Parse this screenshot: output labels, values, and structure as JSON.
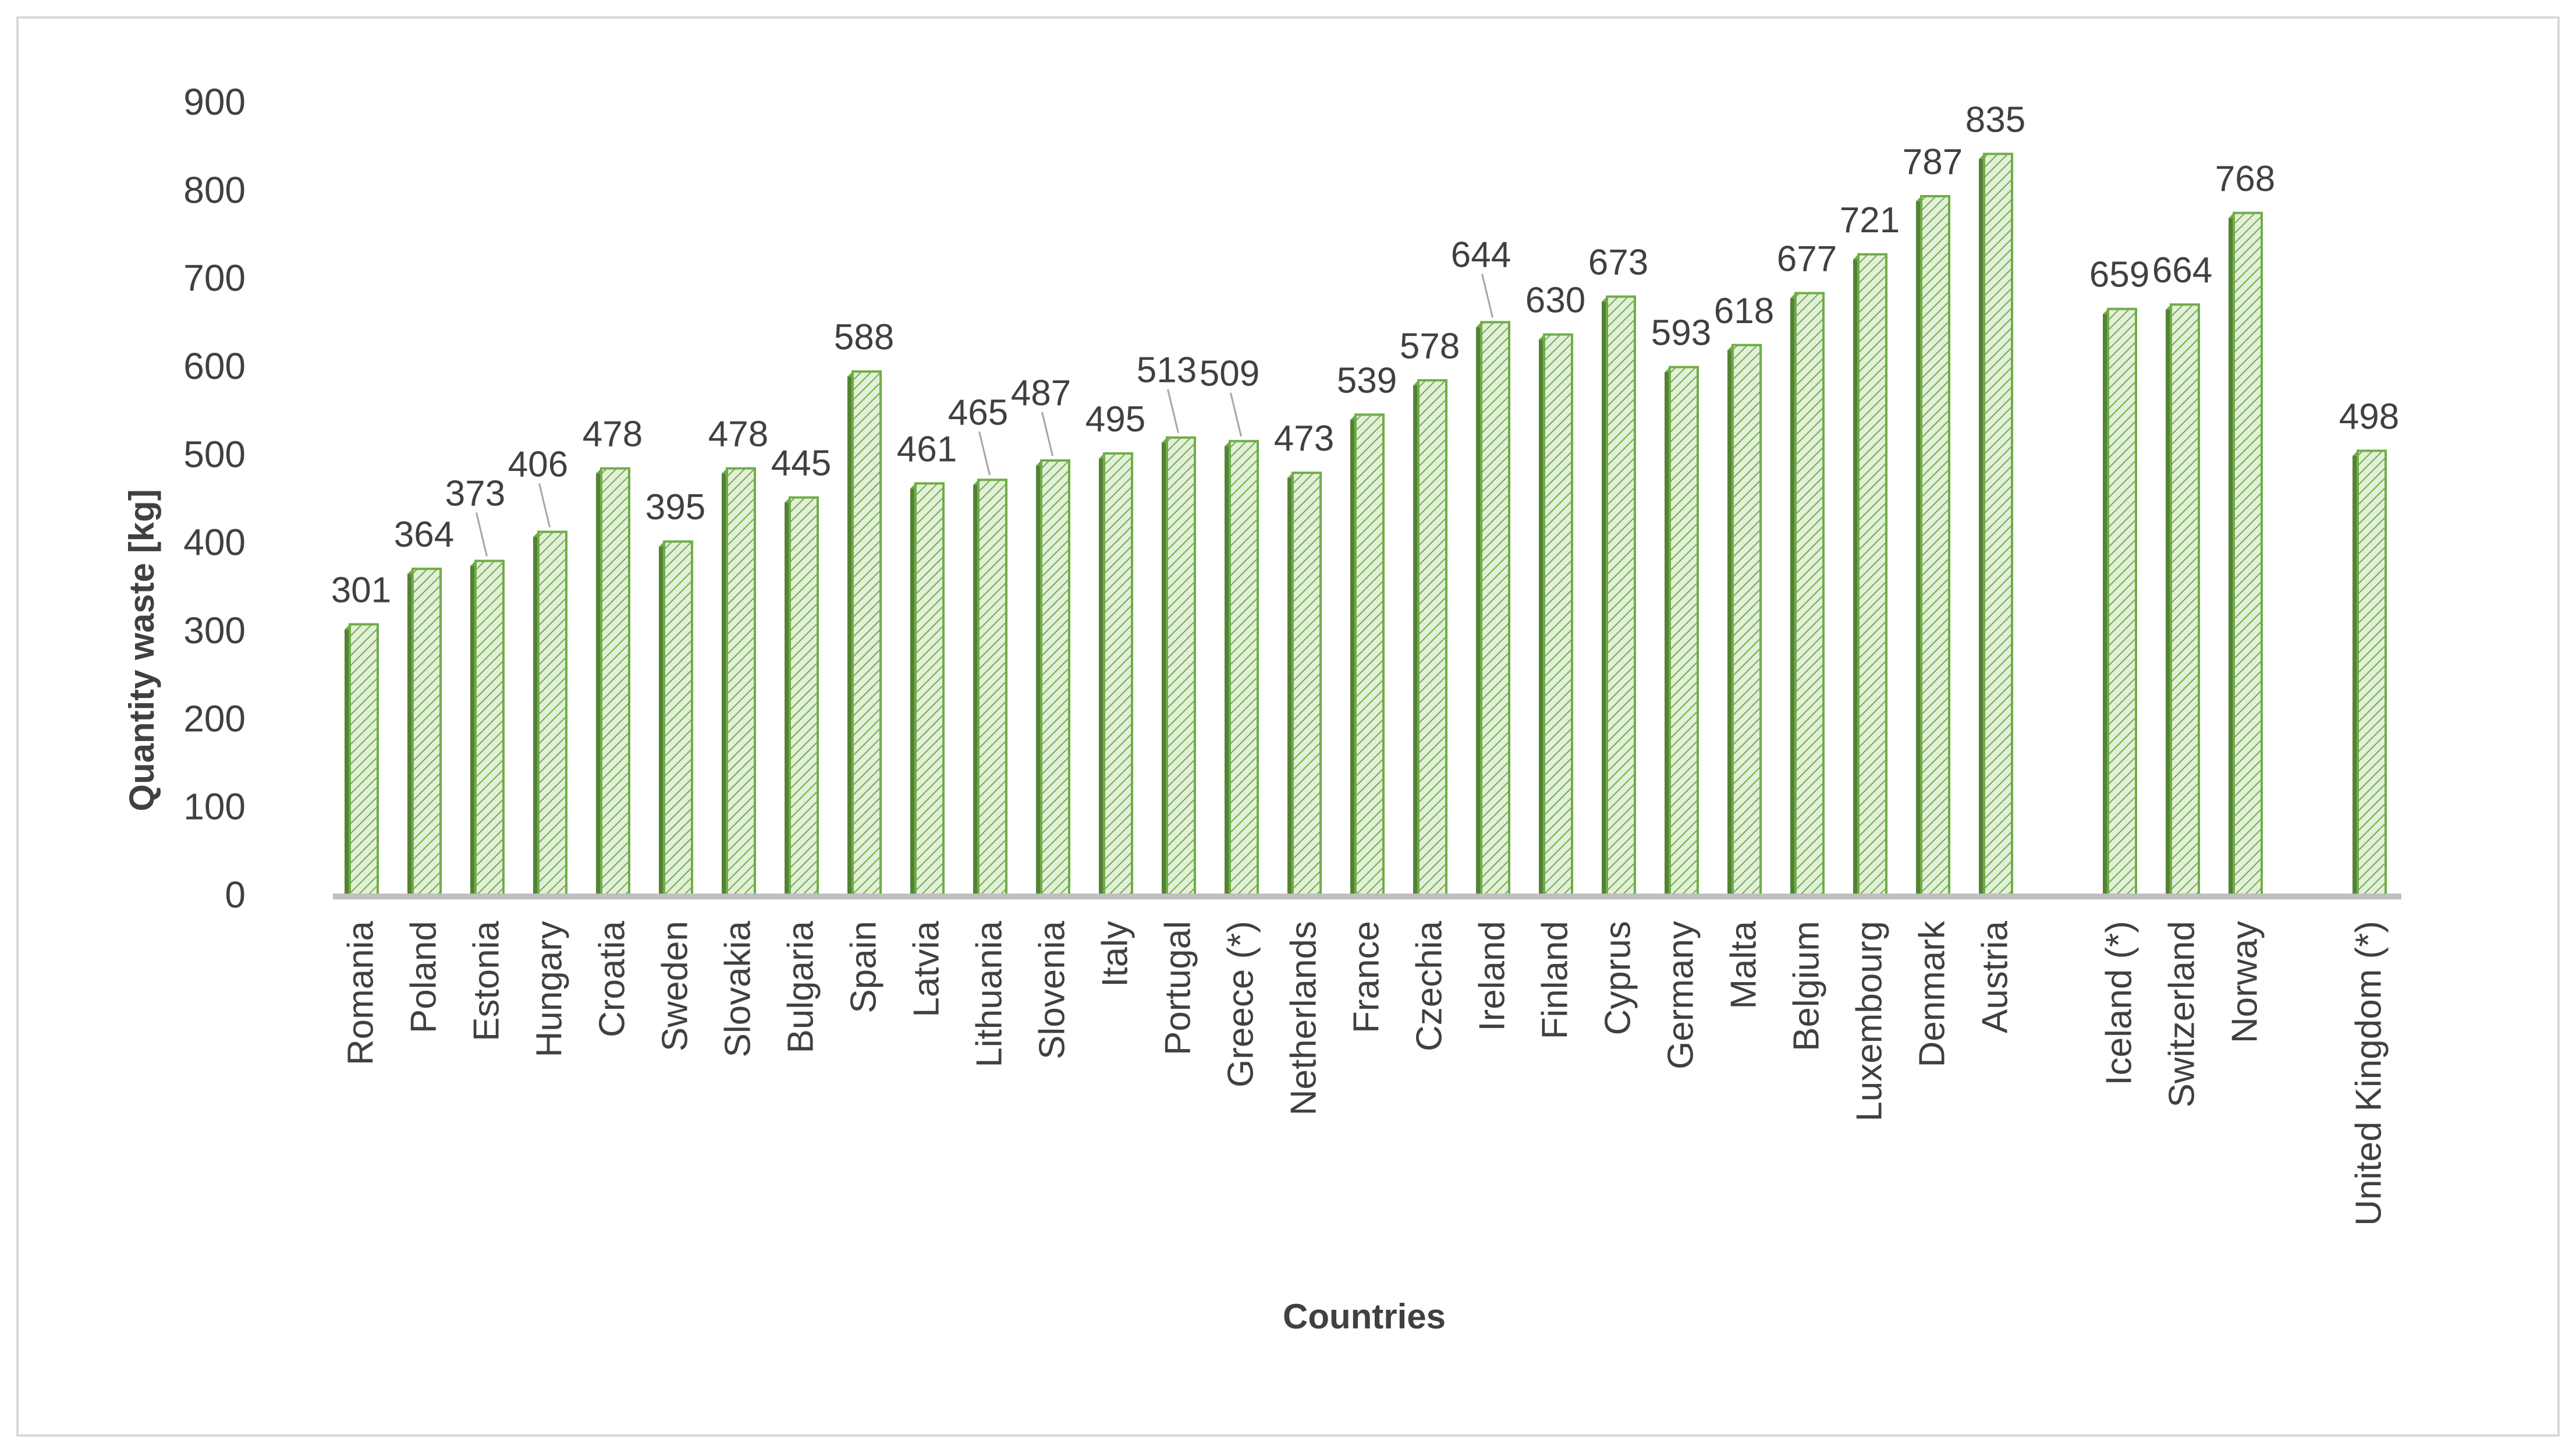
{
  "chart_data": {
    "type": "bar",
    "title": "",
    "xlabel": "Countries",
    "ylabel": "Quantity waste [kg]",
    "ylim": [
      0,
      900
    ],
    "yticks": [
      0,
      100,
      200,
      300,
      400,
      500,
      600,
      700,
      800,
      900
    ],
    "grid": false,
    "legend": "none",
    "colors": {
      "bar_fill": "#e2efd9",
      "bar_hatch": "#70ad47",
      "bar_edge": "#70ad47",
      "bar_side": "#548235",
      "axis": "#bfbfbf",
      "text": "#404040"
    },
    "categories": [
      "Romania",
      "Poland",
      "Estonia",
      "Hungary",
      "Croatia",
      "Sweden",
      "Slovakia",
      "Bulgaria",
      "Spain",
      "Latvia",
      "Lithuania",
      "Slovenia",
      "Italy",
      "Portugal",
      "Greece  (*)",
      "Netherlands",
      "France",
      "Czechia",
      "Ireland",
      "Finland",
      "Cyprus",
      "Germany",
      "Malta",
      "Belgium",
      "Luxembourg",
      "Denmark",
      "Austria",
      "Iceland  (*)",
      "Switzerland",
      "Norway",
      "United Kingdom (*)"
    ],
    "groups": [
      27,
      3,
      1
    ],
    "values": [
      301,
      364,
      373,
      406,
      478,
      395,
      478,
      445,
      588,
      461,
      465,
      487,
      495,
      513,
      509,
      473,
      539,
      578,
      644,
      630,
      673,
      593,
      618,
      677,
      721,
      787,
      835,
      659,
      664,
      768,
      498
    ],
    "data_labels": [
      "301",
      "364",
      "373",
      "406",
      "478",
      "395",
      "478",
      "445",
      "588",
      "461",
      "465",
      "487",
      "495",
      "513",
      "509",
      "473",
      "539",
      "578",
      "644",
      "630",
      "673",
      "593",
      "618",
      "677",
      "721",
      "787",
      "835",
      "659",
      "664",
      "768",
      "498"
    ],
    "leader_lines": [
      "Estonia",
      "Hungary",
      "Lithuania",
      "Slovenia",
      "Portugal",
      "Greece  (*)",
      "Ireland"
    ]
  }
}
